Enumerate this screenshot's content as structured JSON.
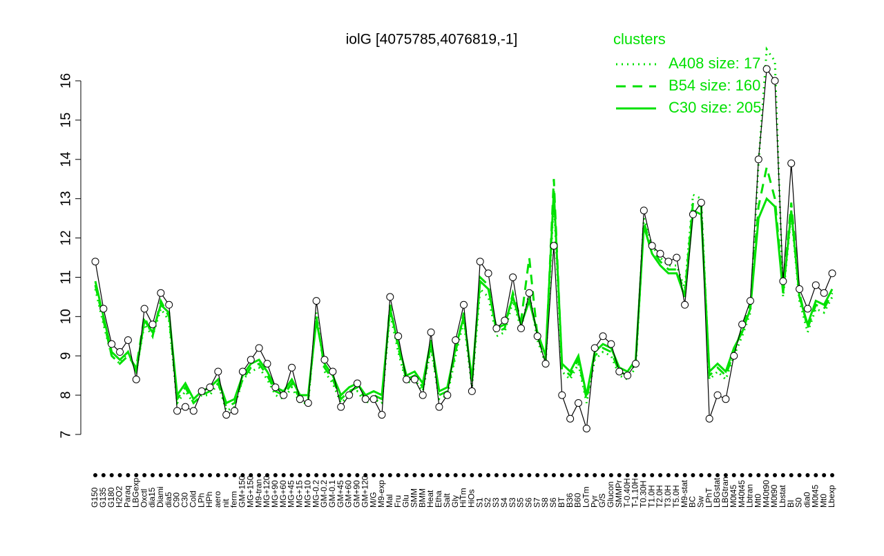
{
  "chart_data": {
    "type": "line",
    "title": "iolG [4075785,4076819,-1]",
    "legend_title": "clusters",
    "categories": [
      "G150",
      "G135",
      "G180",
      "H2O2",
      "Paraq",
      "LBGexp",
      "Oxctl",
      "dia15",
      "Diami",
      "dia5",
      "C90",
      "C30",
      "Cold",
      "LPh",
      "HPh",
      "aero",
      "nit",
      "ferm",
      "GM+150",
      "MG+150",
      "M9-tran",
      "MG+120",
      "MG+90",
      "MG+60",
      "MG+45",
      "MG+15",
      "MG+10",
      "MG-0.2",
      "GM-0.2",
      "GM-0.1",
      "GM+45",
      "GM+60",
      "GM+90",
      "GM+120",
      "M/G",
      "M9-exp",
      "Mal",
      "Fru",
      "Glu",
      "SMM",
      "BMM",
      "Heat",
      "Etha",
      "Salt",
      "Gly",
      "HiTm",
      "HiOs",
      "S1",
      "S2",
      "S3",
      "S4",
      "S3",
      "S5",
      "S6",
      "S7",
      "S8",
      "S6",
      "BT",
      "B36",
      "B60",
      "LoTm",
      "Pyr",
      "G/S",
      "Glucon",
      "SMMPr",
      "T-0.40H",
      "T-1.10H",
      "T0.30H",
      "T1.0H",
      "T2.0H",
      "T3.0H",
      "T5.0H",
      "M9-stat",
      "BC",
      "Sw",
      "LPhT",
      "LBGstat",
      "LBGtran",
      "M0t45",
      "M40t45",
      "Lbtran",
      "Mt0",
      "M40t90",
      "M0t90",
      "Lbstat",
      "BI",
      "S0",
      "dia0",
      "M0t45",
      "Mt0",
      "Lbexp"
    ],
    "values": [
      11.4,
      10.2,
      9.3,
      9.1,
      9.4,
      8.4,
      10.2,
      9.8,
      10.6,
      10.3,
      7.6,
      7.7,
      7.6,
      8.1,
      8.2,
      8.6,
      7.5,
      7.6,
      8.6,
      8.9,
      9.2,
      8.8,
      8.2,
      8.0,
      8.7,
      7.9,
      7.8,
      10.4,
      8.9,
      8.6,
      7.7,
      8.0,
      8.3,
      7.9,
      7.9,
      7.5,
      10.5,
      9.5,
      8.4,
      8.4,
      8.0,
      9.6,
      7.7,
      8.0,
      9.4,
      10.3,
      8.1,
      11.4,
      11.1,
      9.7,
      9.9,
      11.0,
      9.7,
      10.6,
      9.5,
      8.8,
      11.8,
      8.0,
      7.4,
      7.8,
      7.15,
      9.2,
      9.5,
      9.3,
      8.6,
      8.5,
      8.8,
      12.7,
      11.8,
      11.6,
      11.4,
      11.5,
      10.3,
      12.6,
      12.9,
      7.4,
      8.0,
      7.9,
      9.0,
      9.8,
      10.4,
      14.0,
      16.3,
      16.0,
      10.9,
      13.9,
      10.7,
      10.2,
      10.8,
      10.6,
      11.1
    ],
    "color": "#000000",
    "series": [
      {
        "name": "A408 size: 17",
        "color": "#00e000",
        "dash": "dotted",
        "values": [
          10.7,
          9.8,
          9.0,
          8.8,
          9.1,
          8.6,
          9.8,
          9.5,
          10.2,
          9.9,
          7.8,
          8.1,
          7.8,
          8.0,
          8.0,
          8.3,
          7.6,
          7.7,
          8.4,
          8.6,
          8.7,
          8.4,
          8.0,
          7.9,
          8.2,
          7.8,
          7.8,
          10.1,
          8.6,
          8.3,
          7.8,
          8.0,
          8.1,
          7.8,
          7.9,
          7.8,
          10.1,
          9.1,
          8.3,
          8.4,
          8.1,
          9.2,
          7.9,
          8.0,
          9.0,
          9.9,
          8.2,
          10.7,
          10.5,
          9.5,
          9.6,
          10.4,
          9.7,
          10.6,
          9.4,
          8.8,
          13.0,
          8.6,
          8.4,
          8.8,
          7.8,
          8.9,
          9.1,
          9.0,
          8.5,
          8.4,
          8.7,
          12.5,
          11.8,
          11.5,
          11.3,
          11.3,
          10.7,
          13.1,
          13.0,
          8.4,
          8.6,
          8.4,
          9.0,
          9.5,
          10.1,
          13.9,
          16.8,
          16.5,
          10.5,
          12.6,
          10.4,
          9.6,
          10.2,
          10.1,
          10.5
        ]
      },
      {
        "name": "B54 size: 160",
        "color": "#00e000",
        "dash": "dashed",
        "values": [
          10.8,
          9.9,
          9.0,
          8.8,
          9.0,
          8.7,
          10.0,
          9.5,
          10.4,
          10.0,
          7.9,
          8.2,
          7.8,
          8.0,
          8.1,
          8.3,
          7.7,
          7.8,
          8.4,
          8.7,
          8.8,
          8.5,
          8.1,
          8.0,
          8.3,
          7.9,
          7.9,
          10.0,
          8.7,
          8.4,
          7.9,
          8.1,
          8.2,
          7.9,
          8.0,
          7.9,
          10.3,
          9.2,
          8.4,
          8.5,
          8.2,
          9.3,
          8.0,
          8.1,
          9.1,
          10.1,
          8.3,
          11.0,
          10.8,
          9.6,
          9.7,
          10.6,
          9.9,
          11.5,
          9.5,
          8.9,
          13.5,
          8.7,
          8.5,
          8.9,
          7.9,
          9.0,
          9.2,
          9.1,
          8.6,
          8.5,
          8.8,
          12.4,
          11.7,
          11.4,
          11.2,
          11.2,
          10.6,
          12.9,
          12.8,
          8.5,
          8.7,
          8.5,
          9.1,
          9.7,
          10.3,
          12.8,
          13.8,
          13.0,
          10.7,
          12.9,
          10.6,
          9.7,
          10.3,
          10.2,
          10.6
        ]
      },
      {
        "name": "C30 size: 205",
        "color": "#00e000",
        "dash": "solid",
        "values": [
          10.9,
          10.0,
          9.1,
          8.9,
          9.1,
          8.6,
          9.9,
          9.6,
          10.3,
          10.1,
          8.0,
          8.3,
          7.9,
          8.1,
          8.2,
          8.4,
          7.8,
          7.9,
          8.5,
          8.8,
          8.9,
          8.6,
          8.2,
          8.1,
          8.4,
          8.0,
          8.0,
          9.9,
          8.8,
          8.5,
          8.0,
          8.2,
          8.3,
          8.0,
          8.1,
          8.0,
          10.2,
          9.3,
          8.5,
          8.6,
          8.3,
          9.4,
          8.1,
          8.2,
          9.2,
          10.0,
          8.4,
          10.9,
          10.7,
          9.7,
          9.8,
          10.5,
          9.8,
          10.4,
          9.6,
          9.0,
          13.2,
          8.8,
          8.6,
          9.0,
          8.0,
          9.1,
          9.3,
          9.2,
          8.7,
          8.6,
          8.9,
          12.3,
          11.6,
          11.3,
          11.1,
          11.1,
          10.5,
          12.7,
          12.6,
          8.6,
          8.8,
          8.6,
          9.2,
          9.6,
          10.2,
          12.5,
          13.0,
          12.8,
          10.6,
          12.7,
          10.5,
          9.8,
          10.4,
          10.3,
          10.7
        ]
      }
    ],
    "ylim": [
      7,
      16
    ],
    "yticks": [
      7,
      8,
      9,
      10,
      11,
      12,
      13,
      14,
      15,
      16
    ],
    "grid": false
  }
}
